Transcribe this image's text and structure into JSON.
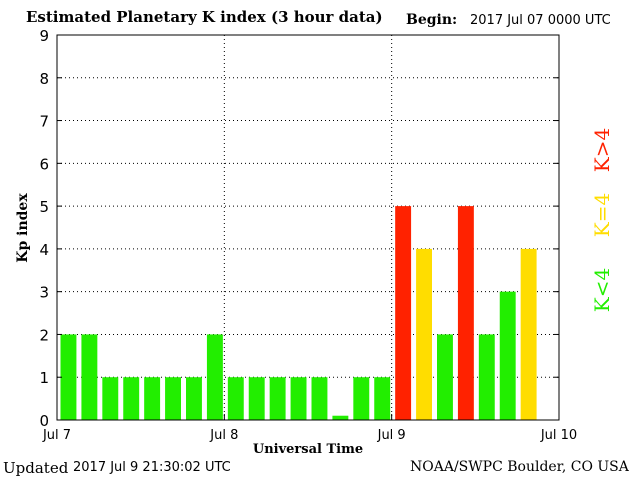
{
  "header": {
    "title": "Estimated Planetary K index (3 hour data)",
    "begin_label": "Begin:",
    "begin_value": "2017 Jul 07 0000 UTC"
  },
  "footer": {
    "updated_label": "Updated",
    "updated_value": "2017 Jul  9 21:30:02 UTC",
    "source": "NOAA/SWPC Boulder, CO USA"
  },
  "legend": [
    {
      "label": "K>4",
      "color": "#ff2200"
    },
    {
      "label": "K=4",
      "color": "#ffdd00"
    },
    {
      "label": "K<4",
      "color": "#22ee00"
    }
  ],
  "chart_data": {
    "type": "bar",
    "xlabel": "Universal Time",
    "ylabel": "Kp index",
    "ylim": [
      0,
      9
    ],
    "xlim": [
      "2017-07-07 00:00",
      "2017-07-10 00:00"
    ],
    "y_ticks": [
      "0",
      "1",
      "2",
      "3",
      "4",
      "5",
      "6",
      "7",
      "8",
      "9"
    ],
    "x_ticks": [
      "Jul 7",
      "Jul 8",
      "Jul 9",
      "Jul 10"
    ],
    "grid": true,
    "interval_hours": 3,
    "categories": [
      "2017-07-07 00:00",
      "2017-07-07 03:00",
      "2017-07-07 06:00",
      "2017-07-07 09:00",
      "2017-07-07 12:00",
      "2017-07-07 15:00",
      "2017-07-07 18:00",
      "2017-07-07 21:00",
      "2017-07-08 00:00",
      "2017-07-08 03:00",
      "2017-07-08 06:00",
      "2017-07-08 09:00",
      "2017-07-08 12:00",
      "2017-07-08 15:00",
      "2017-07-08 18:00",
      "2017-07-08 21:00",
      "2017-07-09 00:00",
      "2017-07-09 03:00",
      "2017-07-09 06:00",
      "2017-07-09 09:00",
      "2017-07-09 12:00",
      "2017-07-09 15:00",
      "2017-07-09 18:00"
    ],
    "values": [
      2,
      2,
      1,
      1,
      1,
      1,
      1,
      2,
      1,
      1,
      1,
      1,
      1,
      0.1,
      1,
      1,
      5,
      4,
      2,
      5,
      2,
      3,
      4
    ],
    "colors": {
      "low": "#22ee00",
      "equal": "#ffdd00",
      "high": "#ff2200"
    }
  }
}
